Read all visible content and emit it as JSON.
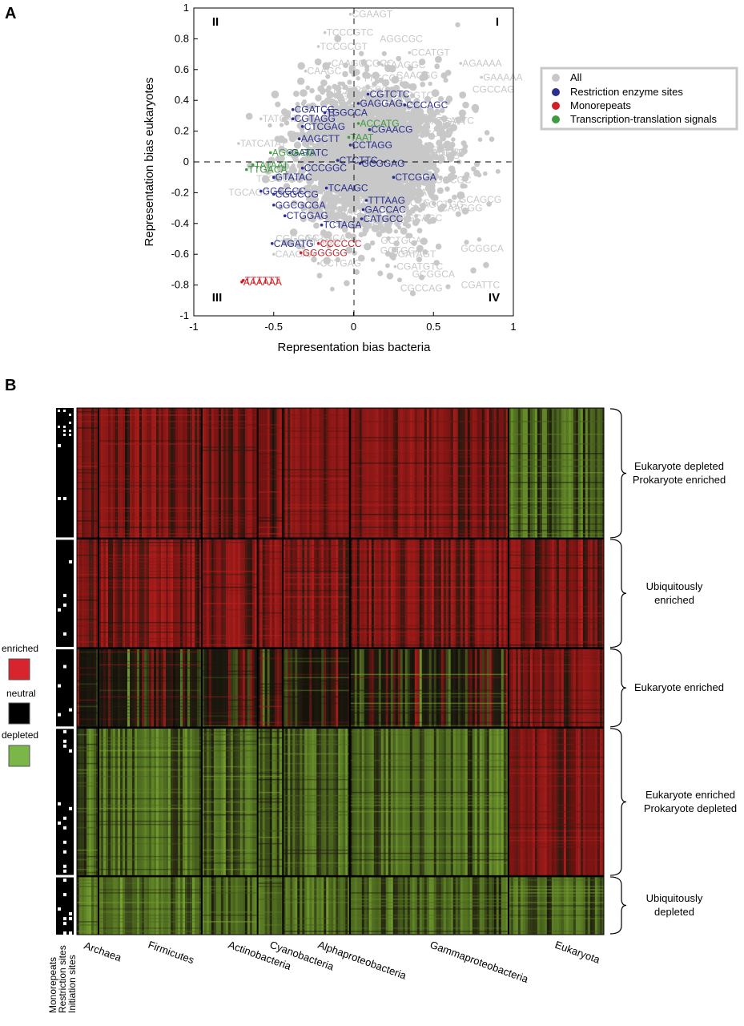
{
  "chart_data": [
    {
      "panel": "A",
      "type": "scatter",
      "title": "",
      "xlabel": "Representation bias bacteria",
      "ylabel": "Representation bias eukaryotes",
      "xlim": [
        -1,
        1
      ],
      "ylim": [
        -1,
        1
      ],
      "xticks": [
        "-1",
        "-0.5",
        "0",
        "0.5",
        "1"
      ],
      "yticks": [
        "1",
        "0.8",
        "0.6",
        "0.4",
        "0.2",
        "0",
        "-0.2",
        "-0.4",
        "-0.6",
        "-0.8",
        "-1"
      ],
      "quadrants": [
        "I",
        "II",
        "III",
        "IV"
      ],
      "grid": false,
      "legend_position": "right",
      "series": [
        {
          "name": "All",
          "color": "#c8c8c8",
          "points": [
            {
              "label": "CGAAGT",
              "x": -0.02,
              "y": 0.96
            },
            {
              "label": "TCCGCGT",
              "x": -0.22,
              "y": 0.75
            },
            {
              "label": "TCCCGTC",
              "x": -0.18,
              "y": 0.84
            },
            {
              "label": "CCATGT",
              "x": 0.35,
              "y": 0.71
            },
            {
              "label": "AGAAAA",
              "x": 0.67,
              "y": 0.64
            },
            {
              "label": "GAAAAA",
              "x": 0.8,
              "y": 0.55
            },
            {
              "label": "CAAGCCGCC",
              "x": -0.15,
              "y": 0.64
            },
            {
              "label": "CAAGGC",
              "x": 0.18,
              "y": 0.63
            },
            {
              "label": "CAAGC",
              "x": -0.3,
              "y": 0.59
            },
            {
              "label": "TATCAT",
              "x": -0.58,
              "y": 0.28
            },
            {
              "label": "TATCATAT",
              "x": -0.72,
              "y": 0.12
            },
            {
              "label": "CAGATGGC",
              "x": -0.44,
              "y": -0.52
            },
            {
              "label": "CAAGAA",
              "x": -0.5,
              "y": -0.6
            },
            {
              "label": "CCTGAG",
              "x": -0.22,
              "y": -0.66
            },
            {
              "label": "GGATAGT",
              "x": 0.22,
              "y": -0.6
            },
            {
              "label": "CGATGTC",
              "x": 0.26,
              "y": -0.68
            }
          ]
        },
        {
          "name": "Restriction enzyme sites",
          "color": "#2b2f8f",
          "points": [
            {
              "label": "CGTCTC",
              "x": 0.09,
              "y": 0.44
            },
            {
              "label": "GAGGAG",
              "x": 0.03,
              "y": 0.38
            },
            {
              "label": "CCCAGC",
              "x": 0.32,
              "y": 0.37
            },
            {
              "label": "CGATCG",
              "x": -0.38,
              "y": 0.34
            },
            {
              "label": "TGGCCA",
              "x": -0.18,
              "y": 0.32
            },
            {
              "label": "CGTAGG",
              "x": -0.38,
              "y": 0.28
            },
            {
              "label": "CTCGAG",
              "x": -0.32,
              "y": 0.23
            },
            {
              "label": "CGAACG",
              "x": 0.1,
              "y": 0.21
            },
            {
              "label": "AAGCTT",
              "x": -0.34,
              "y": 0.15
            },
            {
              "label": "CCTAGG",
              "x": -0.02,
              "y": 0.11
            },
            {
              "label": "GATATC",
              "x": -0.4,
              "y": 0.06
            },
            {
              "label": "CTCTTC",
              "x": -0.1,
              "y": 0.01
            },
            {
              "label": "GCGGAG",
              "x": 0.04,
              "y": -0.01
            },
            {
              "label": "CCCGGC",
              "x": -0.32,
              "y": -0.04
            },
            {
              "label": "GTATAC",
              "x": -0.5,
              "y": -0.1
            },
            {
              "label": "CTCGGA",
              "x": 0.25,
              "y": -0.1
            },
            {
              "label": "TCAAGC",
              "x": -0.17,
              "y": -0.17
            },
            {
              "label": "GGCGCC",
              "x": -0.58,
              "y": -0.19
            },
            {
              "label": "CGGCCG",
              "x": -0.5,
              "y": -0.21
            },
            {
              "label": "TTTAAG",
              "x": 0.08,
              "y": -0.25
            },
            {
              "label": "GGCGCGA",
              "x": -0.5,
              "y": -0.28
            },
            {
              "label": "GACCAC",
              "x": 0.06,
              "y": -0.31
            },
            {
              "label": "CTGGAG",
              "x": -0.43,
              "y": -0.35
            },
            {
              "label": "CATGCC",
              "x": 0.05,
              "y": -0.37
            },
            {
              "label": "TCTAGA",
              "x": -0.2,
              "y": -0.41
            },
            {
              "label": "CAGATG",
              "x": -0.51,
              "y": -0.53
            }
          ]
        },
        {
          "name": "Monorepeats",
          "color": "#d01f25",
          "points": [
            {
              "label": "CCCCCC",
              "x": -0.22,
              "y": -0.53
            },
            {
              "label": "GGGGGG",
              "x": -0.33,
              "y": -0.59
            },
            {
              "label": "AAAAAA",
              "x": -0.7,
              "y": -0.78
            },
            {
              "label": "TTTTTT",
              "x": -0.69,
              "y": -0.77
            }
          ]
        },
        {
          "name": "Transcription-translation signals",
          "color": "#3e9b3e",
          "points": [
            {
              "label": "ACCATG",
              "x": 0.03,
              "y": 0.25
            },
            {
              "label": "TAAT",
              "x": -0.03,
              "y": 0.16
            },
            {
              "label": "AGGAGG",
              "x": -0.52,
              "y": 0.06
            },
            {
              "label": "TTGACA",
              "x": -0.67,
              "y": -0.05
            },
            {
              "label": "TATAAT",
              "x": -0.63,
              "y": -0.02
            }
          ]
        }
      ]
    },
    {
      "panel": "B",
      "type": "heatmap",
      "columns": [
        "Archaea",
        "Firmicutes",
        "Actinobacteria",
        "Cyanobacteria",
        "Alphaproteobacteria",
        "Gammaproteobacteria",
        "Eukaryota"
      ],
      "row_clusters": [
        {
          "label": "Eukaryote depleted\nProkaryote enriched",
          "profile": [
            "enriched",
            "enriched",
            "enriched",
            "enriched",
            "enriched",
            "enriched",
            "depleted"
          ]
        },
        {
          "label": "Ubiquitously\nenriched",
          "profile": [
            "enriched",
            "enriched",
            "enriched",
            "enriched",
            "enriched",
            "enriched",
            "enriched"
          ]
        },
        {
          "label": "Eukaryote enriched",
          "profile": [
            "neutral",
            "neutral",
            "neutral",
            "neutral",
            "neutral",
            "neutral",
            "enriched"
          ]
        },
        {
          "label": "Eukaryote enriched\nProkaryote depleted",
          "profile": [
            "depleted",
            "depleted",
            "depleted",
            "depleted",
            "depleted",
            "depleted",
            "enriched"
          ]
        },
        {
          "label": "Ubiquitously\ndepleted",
          "profile": [
            "depleted",
            "depleted",
            "depleted",
            "depleted",
            "depleted",
            "depleted",
            "depleted"
          ]
        }
      ],
      "legend": [
        {
          "label": "enriched",
          "color": "#d8242c"
        },
        {
          "label": "neutral",
          "color": "#000000"
        },
        {
          "label": "depleted",
          "color": "#7ab648"
        }
      ],
      "annotation_columns": [
        "Monorepeats",
        "Restriction sites",
        "Initiation sites"
      ]
    }
  ]
}
